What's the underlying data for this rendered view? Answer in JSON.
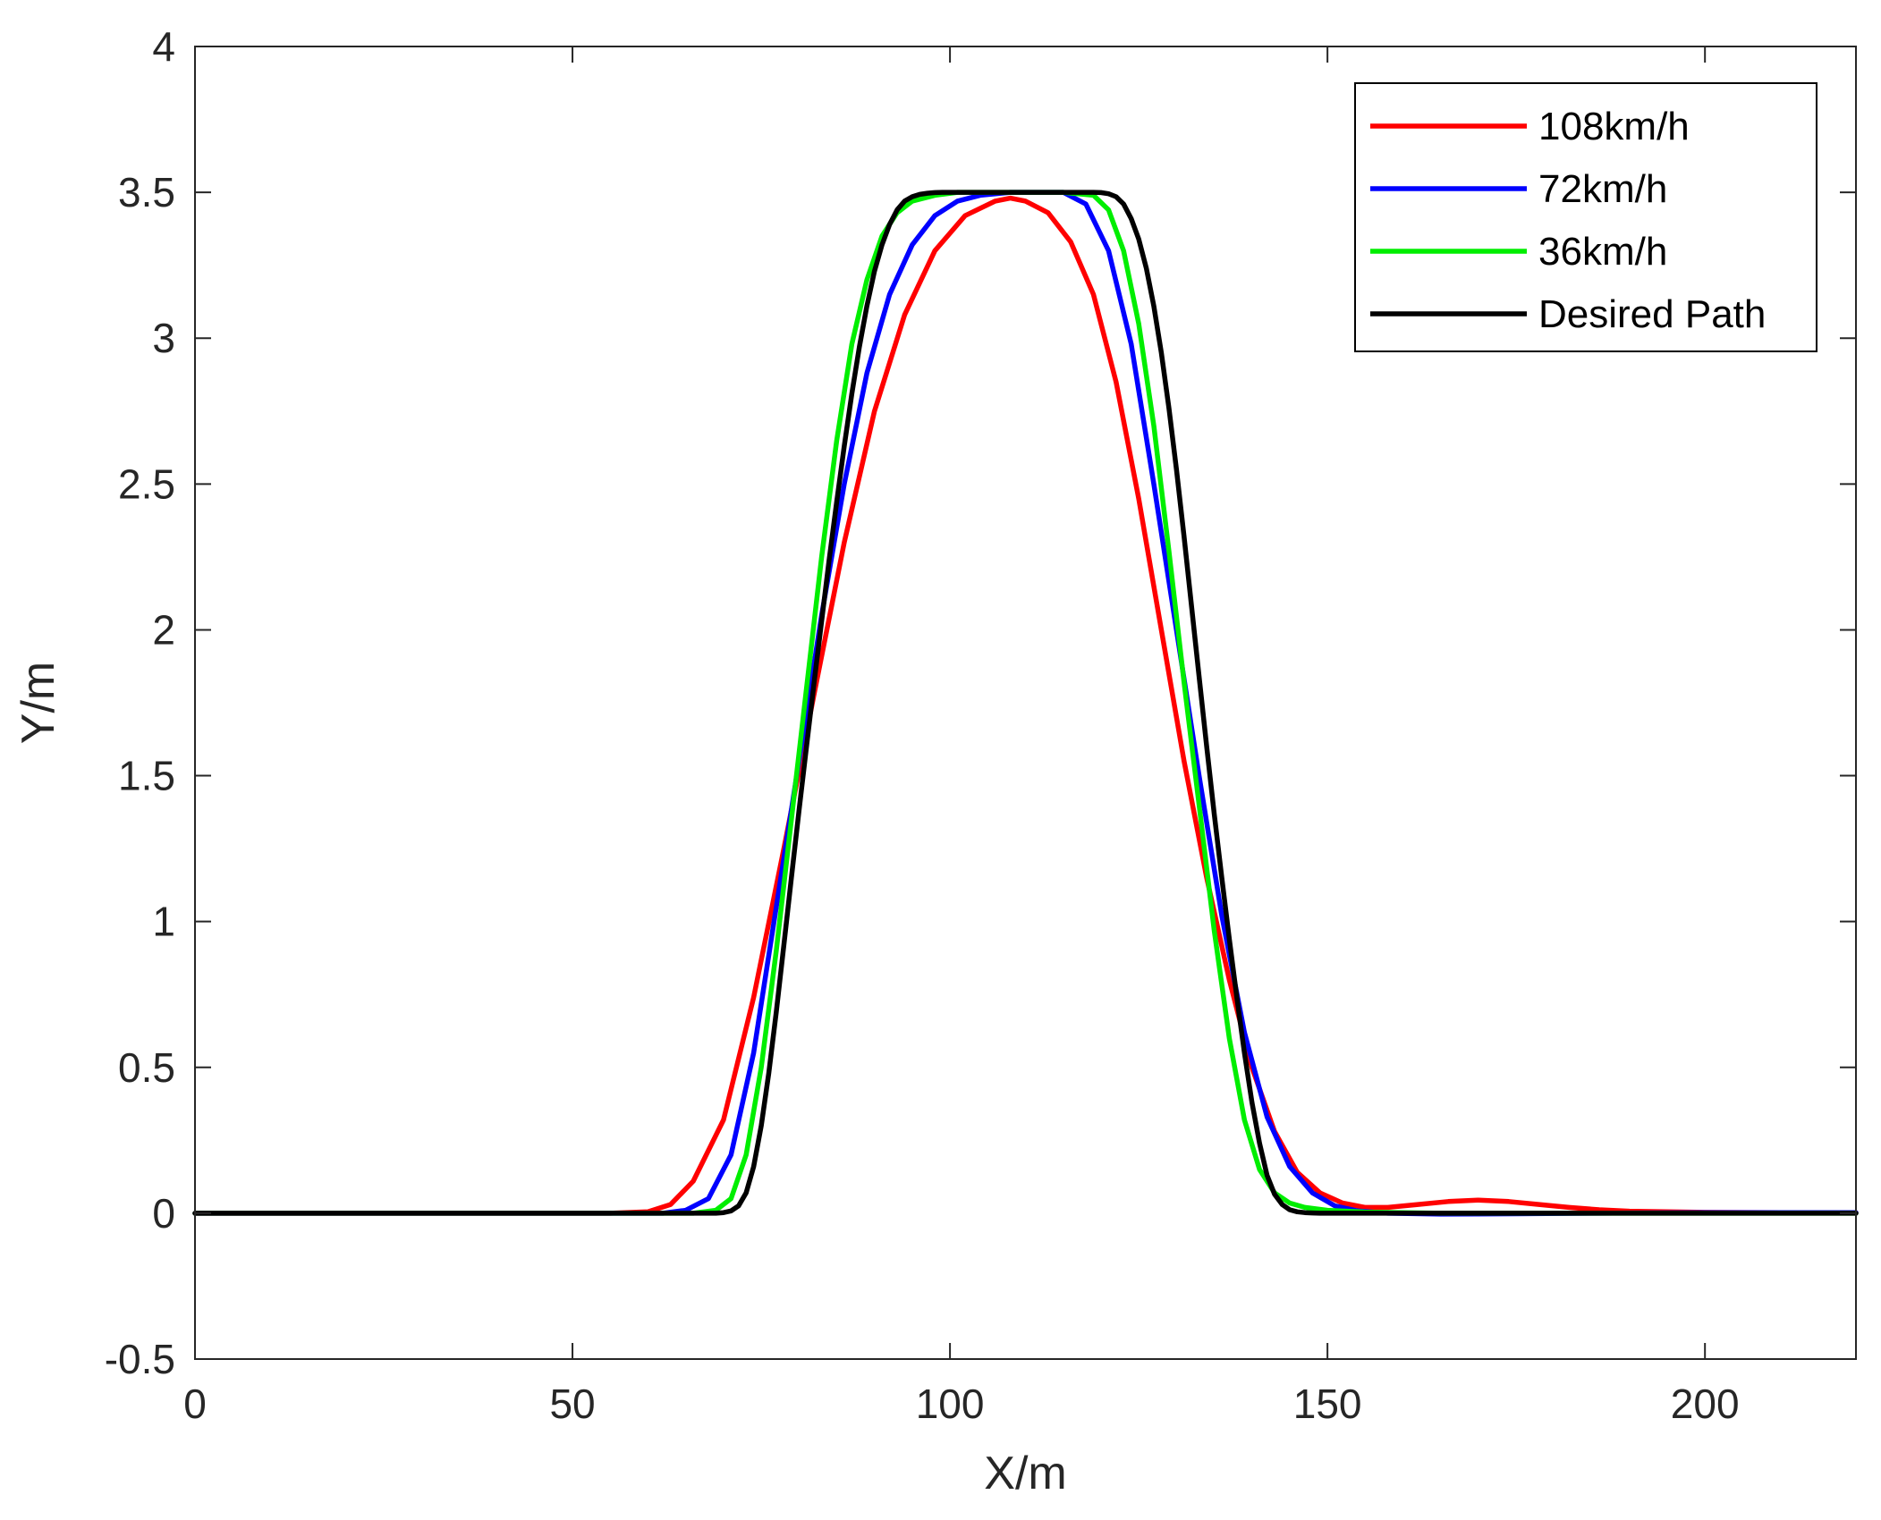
{
  "chart_data": {
    "type": "line",
    "title": "",
    "xlabel": "X/m",
    "ylabel": "Y/m",
    "xlim": [
      0,
      220
    ],
    "ylim": [
      -0.5,
      4
    ],
    "xticks": [
      0,
      50,
      100,
      150,
      200
    ],
    "xtick_labels": [
      "0",
      "50",
      "100",
      "150",
      "200"
    ],
    "yticks": [
      -0.5,
      0,
      0.5,
      1,
      1.5,
      2,
      2.5,
      3,
      3.5,
      4
    ],
    "ytick_labels": [
      "-0.5",
      "0",
      "0.5",
      "1",
      "1.5",
      "2",
      "2.5",
      "3",
      "3.5",
      "4"
    ],
    "grid": false,
    "legend_position": "top-right",
    "series": [
      {
        "name": "108km/h",
        "color": "#ff0000",
        "x": [
          0,
          55,
          60,
          63,
          66,
          70,
          74,
          78,
          82,
          86,
          90,
          94,
          98,
          102,
          106,
          108,
          110,
          113,
          116,
          119,
          122,
          125,
          128,
          131,
          134,
          137,
          140,
          143,
          146,
          149,
          152,
          155,
          158,
          162,
          166,
          170,
          174,
          178,
          182,
          186,
          190,
          200,
          210,
          220
        ],
        "y": [
          0,
          0,
          0.005,
          0.03,
          0.11,
          0.32,
          0.74,
          1.25,
          1.78,
          2.3,
          2.75,
          3.08,
          3.3,
          3.42,
          3.47,
          3.48,
          3.47,
          3.43,
          3.33,
          3.15,
          2.85,
          2.45,
          2.0,
          1.55,
          1.15,
          0.8,
          0.5,
          0.28,
          0.14,
          0.07,
          0.035,
          0.02,
          0.02,
          0.03,
          0.04,
          0.045,
          0.04,
          0.03,
          0.02,
          0.012,
          0.007,
          0.003,
          0.002,
          0.002
        ]
      },
      {
        "name": "72km/h",
        "color": "#0000ff",
        "x": [
          0,
          62,
          65,
          68,
          71,
          74,
          77,
          80,
          83,
          86,
          89,
          92,
          95,
          98,
          101,
          104,
          108,
          112,
          115,
          118,
          121,
          124,
          127,
          130,
          133,
          136,
          139,
          142,
          145,
          148,
          151,
          154,
          158,
          165,
          175,
          185,
          200,
          220
        ],
        "y": [
          0,
          0,
          0.01,
          0.05,
          0.2,
          0.55,
          1.05,
          1.55,
          2.05,
          2.5,
          2.88,
          3.15,
          3.32,
          3.42,
          3.47,
          3.49,
          3.5,
          3.5,
          3.5,
          3.46,
          3.3,
          2.98,
          2.5,
          2.0,
          1.5,
          1.02,
          0.62,
          0.33,
          0.16,
          0.07,
          0.025,
          0.008,
          0.0,
          -0.003,
          -0.002,
          0.0,
          0.002,
          0.002
        ]
      },
      {
        "name": "36km/h",
        "color": "#00ee00",
        "x": [
          0,
          66,
          69,
          71,
          73,
          75,
          77,
          79,
          81,
          83,
          85,
          87,
          89,
          91,
          93,
          95,
          98,
          101,
          105,
          110,
          115,
          119,
          121,
          123,
          125,
          127,
          129,
          131,
          133,
          135,
          137,
          139,
          141,
          143,
          145,
          147,
          150,
          155,
          165,
          220
        ],
        "y": [
          0,
          0,
          0.01,
          0.05,
          0.2,
          0.5,
          0.9,
          1.35,
          1.8,
          2.25,
          2.65,
          2.98,
          3.2,
          3.35,
          3.43,
          3.47,
          3.49,
          3.5,
          3.5,
          3.5,
          3.5,
          3.49,
          3.44,
          3.3,
          3.05,
          2.7,
          2.27,
          1.82,
          1.4,
          0.97,
          0.6,
          0.32,
          0.15,
          0.07,
          0.035,
          0.02,
          0.01,
          0.004,
          0.0,
          0.0
        ]
      },
      {
        "name": "Desired Path",
        "color": "#000000",
        "x": [
          0,
          68,
          69,
          70,
          71,
          72,
          73,
          74,
          75,
          76,
          77,
          78,
          79,
          80,
          81,
          82,
          83,
          84,
          85,
          86,
          87,
          88,
          89,
          90,
          91,
          92,
          93,
          94,
          95,
          96,
          97,
          98,
          99,
          100,
          101,
          119,
          120,
          121,
          122,
          123,
          124,
          125,
          126,
          127,
          128,
          129,
          130,
          131,
          132,
          133,
          134,
          135,
          136,
          137,
          138,
          139,
          140,
          141,
          142,
          143,
          144,
          145,
          146,
          147,
          148,
          149,
          150,
          151,
          220
        ],
        "y": [
          0,
          0,
          0.0,
          0.002,
          0.008,
          0.025,
          0.07,
          0.16,
          0.3,
          0.48,
          0.69,
          0.92,
          1.15,
          1.38,
          1.6,
          1.82,
          2.03,
          2.24,
          2.44,
          2.63,
          2.81,
          2.97,
          3.11,
          3.23,
          3.32,
          3.39,
          3.44,
          3.47,
          3.485,
          3.493,
          3.497,
          3.499,
          3.5,
          3.5,
          3.5,
          3.5,
          3.499,
          3.495,
          3.485,
          3.46,
          3.41,
          3.34,
          3.24,
          3.11,
          2.95,
          2.76,
          2.55,
          2.32,
          2.08,
          1.84,
          1.6,
          1.37,
          1.15,
          0.94,
          0.74,
          0.55,
          0.38,
          0.24,
          0.13,
          0.065,
          0.03,
          0.012,
          0.005,
          0.002,
          0.001,
          0.0,
          0.0,
          0.0,
          0.0
        ]
      }
    ]
  }
}
